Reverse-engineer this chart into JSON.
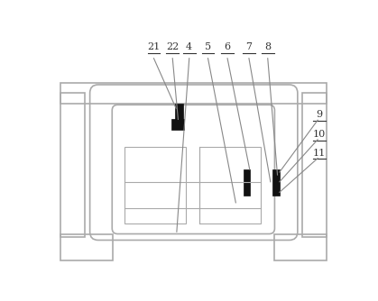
{
  "figsize": [
    4.19,
    3.34
  ],
  "dpi": 100,
  "lc": "#aaaaaa",
  "bc": "#111111",
  "tc": "#333333",
  "lw": 1.2,
  "thin": 0.8
}
